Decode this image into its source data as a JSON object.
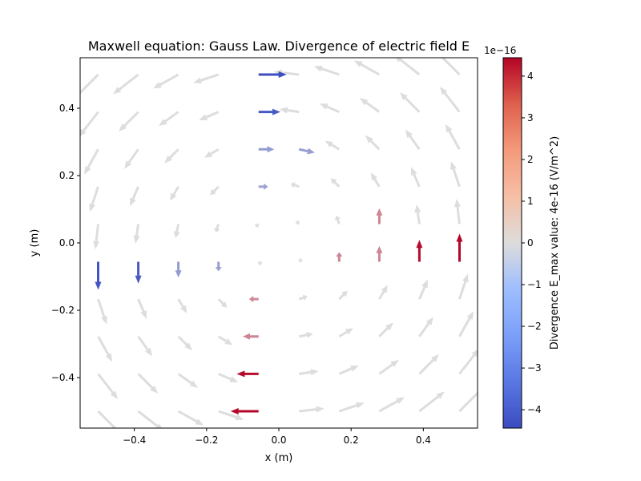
{
  "chart_data": {
    "type": "quiver",
    "title": "Maxwell equation: Gauss Law. Divergence of electric field E",
    "xlabel": "x (m)",
    "ylabel": "y (m)",
    "xlim": [
      -0.55,
      0.55
    ],
    "ylim": [
      -0.55,
      0.55
    ],
    "xticks": [
      "−0.4",
      "−0.2",
      "0.0",
      "0.2",
      "0.4"
    ],
    "xtick_values": [
      -0.4,
      -0.2,
      0.0,
      0.2,
      0.4
    ],
    "yticks": [
      "−0.4",
      "−0.2",
      "0.0",
      "0.2",
      "0.4"
    ],
    "ytick_values": [
      -0.4,
      -0.2,
      0.0,
      0.2,
      0.4
    ],
    "grid": false,
    "field_pattern": "counter-clockwise rotation about origin",
    "grid_points": [
      -0.5,
      -0.389,
      -0.278,
      -0.167,
      -0.056,
      0.056,
      0.167,
      0.278,
      0.389,
      0.5
    ],
    "highlighted_arrows": [
      {
        "x": -0.056,
        "y": 0.5,
        "u": 0.5,
        "v": 0.0,
        "divergence": -4.4e-16
      },
      {
        "x": -0.056,
        "y": 0.389,
        "u": 0.39,
        "v": 0.0,
        "divergence": -4e-16
      },
      {
        "x": -0.056,
        "y": 0.278,
        "u": 0.28,
        "v": 0.0,
        "divergence": -2e-16
      },
      {
        "x": 0.056,
        "y": 0.278,
        "u": 0.28,
        "v": -0.06,
        "divergence": -1.9e-16
      },
      {
        "x": -0.056,
        "y": 0.167,
        "u": 0.17,
        "v": 0.0,
        "divergence": -1.8e-16
      },
      {
        "x": -0.5,
        "y": -0.056,
        "u": 0.0,
        "v": -0.5,
        "divergence": -4.2e-16
      },
      {
        "x": -0.389,
        "y": -0.056,
        "u": 0.0,
        "v": -0.39,
        "divergence": -4e-16
      },
      {
        "x": -0.278,
        "y": -0.056,
        "u": 0.0,
        "v": -0.28,
        "divergence": -2e-16
      },
      {
        "x": -0.167,
        "y": -0.056,
        "u": 0.0,
        "v": -0.17,
        "divergence": -1.9e-16
      },
      {
        "x": 0.278,
        "y": 0.056,
        "u": 0.0,
        "v": 0.28,
        "divergence": 1.8e-16
      },
      {
        "x": 0.167,
        "y": -0.056,
        "u": 0.0,
        "v": 0.17,
        "divergence": 1.8e-16
      },
      {
        "x": 0.278,
        "y": -0.056,
        "u": 0.0,
        "v": 0.28,
        "divergence": 1.8e-16
      },
      {
        "x": 0.389,
        "y": -0.056,
        "u": 0.0,
        "v": 0.39,
        "divergence": 4.3e-16
      },
      {
        "x": 0.5,
        "y": -0.056,
        "u": 0.0,
        "v": 0.5,
        "divergence": 4.4e-16
      },
      {
        "x": -0.056,
        "y": -0.167,
        "u": -0.17,
        "v": 0.0,
        "divergence": 1.7e-16
      },
      {
        "x": -0.056,
        "y": -0.278,
        "u": -0.28,
        "v": 0.0,
        "divergence": 1.8e-16
      },
      {
        "x": -0.056,
        "y": -0.389,
        "u": -0.39,
        "v": 0.0,
        "divergence": 4.3e-16
      },
      {
        "x": -0.056,
        "y": -0.5,
        "u": -0.5,
        "v": 0.0,
        "divergence": 4.4e-16
      }
    ],
    "colorbar": {
      "label": "Divergence E_max value:  4e-16 (V/m^2)",
      "colormap": "coolwarm",
      "range": [
        -4.44e-16,
        4.44e-16
      ],
      "tick_values": [
        -4,
        -3,
        -2,
        -1,
        0,
        1,
        2,
        3,
        4
      ],
      "ticks": [
        "−4",
        "−3",
        "−2",
        "−1",
        "0",
        "1",
        "2",
        "3",
        "4"
      ],
      "offset_text": "1e−16",
      "low_color": "#3b4cc0",
      "mid_color": "#dddddd",
      "high_color": "#b40426"
    }
  }
}
